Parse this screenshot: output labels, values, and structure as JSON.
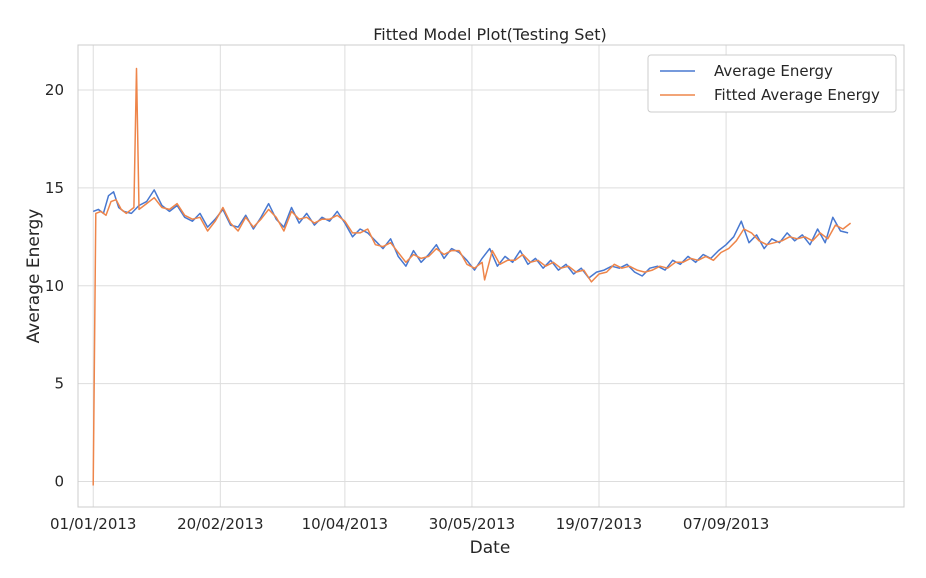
{
  "chart_data": {
    "type": "line",
    "title": "Fitted Model Plot(Testing Set)",
    "xlabel": "Date",
    "ylabel": "Average Energy",
    "xlim": [
      "2012-12-26",
      "2013-11-16"
    ],
    "ylim": [
      -1.3,
      22.3
    ],
    "grid": true,
    "legend_position": "top-right",
    "x_ticks": [
      "2013-01-01",
      "2013-02-20",
      "2013-04-10",
      "2013-05-30",
      "2013-07-19",
      "2013-09-07"
    ],
    "x_tick_labels": [
      "01/01/2013",
      "20/02/2013",
      "10/04/2013",
      "30/05/2013",
      "19/07/2013",
      "07/09/2013"
    ],
    "y_ticks": [
      0,
      5,
      10,
      15,
      20
    ],
    "y_tick_labels": [
      "0",
      "5",
      "10",
      "15",
      "20"
    ],
    "series": [
      {
        "name": "Average Energy",
        "color": "#4878d0",
        "points": [
          [
            "2013-01-01",
            13.8
          ],
          [
            "2013-01-03",
            13.9
          ],
          [
            "2013-01-05",
            13.7
          ],
          [
            "2013-01-07",
            14.6
          ],
          [
            "2013-01-09",
            14.8
          ],
          [
            "2013-01-11",
            14.0
          ],
          [
            "2013-01-13",
            13.8
          ],
          [
            "2013-01-16",
            13.7
          ],
          [
            "2013-01-19",
            14.1
          ],
          [
            "2013-01-22",
            14.3
          ],
          [
            "2013-01-25",
            14.9
          ],
          [
            "2013-01-28",
            14.1
          ],
          [
            "2013-01-31",
            13.8
          ],
          [
            "2013-02-03",
            14.1
          ],
          [
            "2013-02-06",
            13.5
          ],
          [
            "2013-02-09",
            13.3
          ],
          [
            "2013-02-12",
            13.7
          ],
          [
            "2013-02-15",
            13.0
          ],
          [
            "2013-02-18",
            13.4
          ],
          [
            "2013-02-21",
            13.9
          ],
          [
            "2013-02-24",
            13.1
          ],
          [
            "2013-02-27",
            13.0
          ],
          [
            "2013-03-02",
            13.6
          ],
          [
            "2013-03-05",
            12.9
          ],
          [
            "2013-03-08",
            13.5
          ],
          [
            "2013-03-11",
            14.2
          ],
          [
            "2013-03-14",
            13.4
          ],
          [
            "2013-03-17",
            13.0
          ],
          [
            "2013-03-20",
            14.0
          ],
          [
            "2013-03-23",
            13.2
          ],
          [
            "2013-03-26",
            13.7
          ],
          [
            "2013-03-29",
            13.1
          ],
          [
            "2013-04-01",
            13.5
          ],
          [
            "2013-04-04",
            13.3
          ],
          [
            "2013-04-07",
            13.8
          ],
          [
            "2013-04-10",
            13.2
          ],
          [
            "2013-04-13",
            12.5
          ],
          [
            "2013-04-16",
            12.9
          ],
          [
            "2013-04-19",
            12.7
          ],
          [
            "2013-04-22",
            12.3
          ],
          [
            "2013-04-25",
            11.9
          ],
          [
            "2013-04-28",
            12.4
          ],
          [
            "2013-05-01",
            11.5
          ],
          [
            "2013-05-04",
            11.0
          ],
          [
            "2013-05-07",
            11.8
          ],
          [
            "2013-05-10",
            11.2
          ],
          [
            "2013-05-13",
            11.6
          ],
          [
            "2013-05-16",
            12.1
          ],
          [
            "2013-05-19",
            11.4
          ],
          [
            "2013-05-22",
            11.9
          ],
          [
            "2013-05-25",
            11.7
          ],
          [
            "2013-05-28",
            11.3
          ],
          [
            "2013-05-31",
            10.8
          ],
          [
            "2013-06-03",
            11.4
          ],
          [
            "2013-06-06",
            11.9
          ],
          [
            "2013-06-09",
            11.0
          ],
          [
            "2013-06-12",
            11.5
          ],
          [
            "2013-06-15",
            11.2
          ],
          [
            "2013-06-18",
            11.8
          ],
          [
            "2013-06-21",
            11.1
          ],
          [
            "2013-06-24",
            11.4
          ],
          [
            "2013-06-27",
            10.9
          ],
          [
            "2013-06-30",
            11.3
          ],
          [
            "2013-07-03",
            10.8
          ],
          [
            "2013-07-06",
            11.1
          ],
          [
            "2013-07-09",
            10.6
          ],
          [
            "2013-07-12",
            10.9
          ],
          [
            "2013-07-15",
            10.4
          ],
          [
            "2013-07-18",
            10.7
          ],
          [
            "2013-07-21",
            10.8
          ],
          [
            "2013-07-24",
            11.0
          ],
          [
            "2013-07-27",
            10.9
          ],
          [
            "2013-07-30",
            11.1
          ],
          [
            "2013-08-02",
            10.7
          ],
          [
            "2013-08-05",
            10.5
          ],
          [
            "2013-08-08",
            10.9
          ],
          [
            "2013-08-11",
            11.0
          ],
          [
            "2013-08-14",
            10.8
          ],
          [
            "2013-08-17",
            11.3
          ],
          [
            "2013-08-20",
            11.1
          ],
          [
            "2013-08-23",
            11.5
          ],
          [
            "2013-08-26",
            11.2
          ],
          [
            "2013-08-29",
            11.6
          ],
          [
            "2013-09-01",
            11.4
          ],
          [
            "2013-09-04",
            11.8
          ],
          [
            "2013-09-07",
            12.1
          ],
          [
            "2013-09-10",
            12.5
          ],
          [
            "2013-09-13",
            13.3
          ],
          [
            "2013-09-16",
            12.2
          ],
          [
            "2013-09-19",
            12.6
          ],
          [
            "2013-09-22",
            11.9
          ],
          [
            "2013-09-25",
            12.4
          ],
          [
            "2013-09-28",
            12.2
          ],
          [
            "2013-10-01",
            12.7
          ],
          [
            "2013-10-04",
            12.3
          ],
          [
            "2013-10-07",
            12.6
          ],
          [
            "2013-10-10",
            12.1
          ],
          [
            "2013-10-13",
            12.9
          ],
          [
            "2013-10-16",
            12.2
          ],
          [
            "2013-10-19",
            13.5
          ],
          [
            "2013-10-22",
            12.8
          ],
          [
            "2013-10-25",
            12.7
          ]
        ]
      },
      {
        "name": "Fitted Average Energy",
        "color": "#ee854a",
        "points": [
          [
            "2013-01-01",
            -0.2
          ],
          [
            "2013-01-02",
            13.7
          ],
          [
            "2013-01-04",
            13.8
          ],
          [
            "2013-01-06",
            13.6
          ],
          [
            "2013-01-08",
            14.3
          ],
          [
            "2013-01-10",
            14.4
          ],
          [
            "2013-01-12",
            13.9
          ],
          [
            "2013-01-14",
            13.7
          ],
          [
            "2013-01-17",
            14.0
          ],
          [
            "2013-01-18",
            21.1
          ],
          [
            "2013-01-19",
            13.9
          ],
          [
            "2013-01-22",
            14.2
          ],
          [
            "2013-01-25",
            14.5
          ],
          [
            "2013-01-28",
            14.0
          ],
          [
            "2013-01-31",
            13.9
          ],
          [
            "2013-02-03",
            14.2
          ],
          [
            "2013-02-06",
            13.6
          ],
          [
            "2013-02-09",
            13.4
          ],
          [
            "2013-02-12",
            13.5
          ],
          [
            "2013-02-15",
            12.8
          ],
          [
            "2013-02-18",
            13.3
          ],
          [
            "2013-02-21",
            14.0
          ],
          [
            "2013-02-24",
            13.2
          ],
          [
            "2013-02-27",
            12.8
          ],
          [
            "2013-03-02",
            13.5
          ],
          [
            "2013-03-05",
            13.0
          ],
          [
            "2013-03-08",
            13.4
          ],
          [
            "2013-03-11",
            13.9
          ],
          [
            "2013-03-14",
            13.5
          ],
          [
            "2013-03-17",
            12.8
          ],
          [
            "2013-03-20",
            13.8
          ],
          [
            "2013-03-23",
            13.4
          ],
          [
            "2013-03-26",
            13.5
          ],
          [
            "2013-03-29",
            13.2
          ],
          [
            "2013-04-01",
            13.4
          ],
          [
            "2013-04-04",
            13.4
          ],
          [
            "2013-04-07",
            13.6
          ],
          [
            "2013-04-10",
            13.3
          ],
          [
            "2013-04-13",
            12.7
          ],
          [
            "2013-04-16",
            12.7
          ],
          [
            "2013-04-19",
            12.9
          ],
          [
            "2013-04-22",
            12.1
          ],
          [
            "2013-04-25",
            12.0
          ],
          [
            "2013-04-28",
            12.2
          ],
          [
            "2013-05-01",
            11.7
          ],
          [
            "2013-05-04",
            11.2
          ],
          [
            "2013-05-07",
            11.6
          ],
          [
            "2013-05-10",
            11.4
          ],
          [
            "2013-05-13",
            11.5
          ],
          [
            "2013-05-16",
            11.9
          ],
          [
            "2013-05-19",
            11.6
          ],
          [
            "2013-05-22",
            11.8
          ],
          [
            "2013-05-25",
            11.8
          ],
          [
            "2013-05-28",
            11.1
          ],
          [
            "2013-05-31",
            10.9
          ],
          [
            "2013-06-03",
            11.2
          ],
          [
            "2013-06-04",
            10.3
          ],
          [
            "2013-06-07",
            11.8
          ],
          [
            "2013-06-10",
            11.1
          ],
          [
            "2013-06-13",
            11.3
          ],
          [
            "2013-06-16",
            11.3
          ],
          [
            "2013-06-19",
            11.6
          ],
          [
            "2013-06-22",
            11.2
          ],
          [
            "2013-06-25",
            11.3
          ],
          [
            "2013-06-28",
            11.0
          ],
          [
            "2013-07-01",
            11.2
          ],
          [
            "2013-07-04",
            10.9
          ],
          [
            "2013-07-07",
            11.0
          ],
          [
            "2013-07-10",
            10.7
          ],
          [
            "2013-07-13",
            10.8
          ],
          [
            "2013-07-16",
            10.2
          ],
          [
            "2013-07-19",
            10.6
          ],
          [
            "2013-07-22",
            10.7
          ],
          [
            "2013-07-25",
            11.1
          ],
          [
            "2013-07-28",
            10.9
          ],
          [
            "2013-07-31",
            11.0
          ],
          [
            "2013-08-03",
            10.8
          ],
          [
            "2013-08-06",
            10.7
          ],
          [
            "2013-08-09",
            10.8
          ],
          [
            "2013-08-12",
            11.0
          ],
          [
            "2013-08-15",
            10.9
          ],
          [
            "2013-08-18",
            11.2
          ],
          [
            "2013-08-21",
            11.2
          ],
          [
            "2013-08-24",
            11.4
          ],
          [
            "2013-08-27",
            11.3
          ],
          [
            "2013-08-30",
            11.5
          ],
          [
            "2013-09-02",
            11.3
          ],
          [
            "2013-09-05",
            11.7
          ],
          [
            "2013-09-08",
            11.9
          ],
          [
            "2013-09-11",
            12.3
          ],
          [
            "2013-09-14",
            12.9
          ],
          [
            "2013-09-17",
            12.7
          ],
          [
            "2013-09-20",
            12.3
          ],
          [
            "2013-09-23",
            12.1
          ],
          [
            "2013-09-26",
            12.2
          ],
          [
            "2013-09-29",
            12.3
          ],
          [
            "2013-10-02",
            12.5
          ],
          [
            "2013-10-05",
            12.4
          ],
          [
            "2013-10-08",
            12.5
          ],
          [
            "2013-10-11",
            12.3
          ],
          [
            "2013-10-14",
            12.7
          ],
          [
            "2013-10-17",
            12.4
          ],
          [
            "2013-10-20",
            13.1
          ],
          [
            "2013-10-23",
            12.9
          ],
          [
            "2013-10-26",
            13.2
          ]
        ]
      }
    ]
  }
}
